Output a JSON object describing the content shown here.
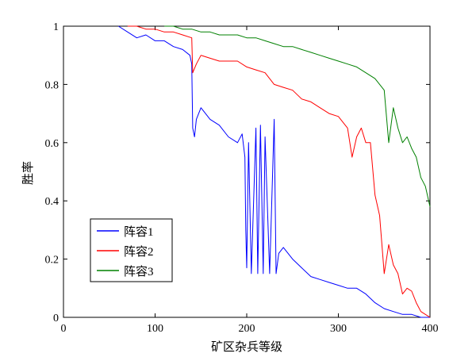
{
  "chart_data": {
    "type": "line",
    "title": "",
    "xlabel": "矿区杂兵等级",
    "ylabel": "胜率",
    "xlim": [
      0,
      400
    ],
    "ylim": [
      0,
      1
    ],
    "xticks": [
      0,
      100,
      200,
      300,
      400
    ],
    "yticks": [
      0,
      0.2,
      0.4,
      0.6,
      0.8,
      1
    ],
    "xtick_labels": [
      "0",
      "100",
      "200",
      "300",
      "400"
    ],
    "ytick_labels": [
      "0",
      "0.2",
      "0.4",
      "0.6",
      "0.8",
      "1"
    ],
    "grid": false,
    "legend_position": "lower-left",
    "series": [
      {
        "name": "阵容1",
        "color": "#0000ff",
        "x": [
          60,
          70,
          80,
          90,
          100,
          110,
          120,
          130,
          138,
          140,
          141,
          143,
          145,
          150,
          160,
          170,
          180,
          190,
          195,
          198,
          199,
          200,
          202,
          205,
          210,
          212,
          215,
          218,
          220,
          225,
          230,
          232,
          235,
          240,
          250,
          260,
          270,
          280,
          290,
          300,
          310,
          320,
          330,
          340,
          350,
          360,
          370,
          380,
          390,
          400
        ],
        "y": [
          1.0,
          0.98,
          0.96,
          0.97,
          0.95,
          0.95,
          0.93,
          0.92,
          0.9,
          0.87,
          0.65,
          0.62,
          0.68,
          0.72,
          0.68,
          0.66,
          0.62,
          0.6,
          0.63,
          0.55,
          0.3,
          0.17,
          0.6,
          0.15,
          0.65,
          0.15,
          0.66,
          0.15,
          0.62,
          0.15,
          0.68,
          0.15,
          0.22,
          0.24,
          0.2,
          0.17,
          0.14,
          0.13,
          0.12,
          0.11,
          0.1,
          0.1,
          0.08,
          0.05,
          0.03,
          0.02,
          0.01,
          0.01,
          0.0,
          0.0
        ]
      },
      {
        "name": "阵容2",
        "color": "#ff0000",
        "x": [
          70,
          80,
          90,
          100,
          110,
          120,
          130,
          140,
          141,
          145,
          150,
          160,
          170,
          180,
          190,
          200,
          210,
          220,
          230,
          240,
          250,
          260,
          270,
          280,
          290,
          300,
          310,
          315,
          320,
          325,
          330,
          335,
          340,
          345,
          350,
          355,
          360,
          365,
          370,
          375,
          380,
          385,
          390,
          395,
          400
        ],
        "y": [
          1.0,
          1.0,
          0.99,
          0.99,
          0.98,
          0.98,
          0.97,
          0.96,
          0.84,
          0.87,
          0.9,
          0.89,
          0.88,
          0.88,
          0.88,
          0.86,
          0.85,
          0.84,
          0.8,
          0.79,
          0.78,
          0.75,
          0.74,
          0.72,
          0.7,
          0.69,
          0.65,
          0.55,
          0.62,
          0.65,
          0.6,
          0.6,
          0.42,
          0.35,
          0.15,
          0.25,
          0.18,
          0.15,
          0.08,
          0.1,
          0.09,
          0.05,
          0.02,
          0.01,
          0.0
        ]
      },
      {
        "name": "阵容3",
        "color": "#008000",
        "x": [
          110,
          120,
          130,
          140,
          150,
          160,
          170,
          180,
          190,
          200,
          210,
          220,
          230,
          240,
          250,
          260,
          270,
          280,
          290,
          300,
          310,
          320,
          330,
          340,
          350,
          355,
          360,
          365,
          370,
          375,
          380,
          385,
          390,
          395,
          400
        ],
        "y": [
          1.0,
          1.0,
          0.99,
          0.99,
          0.98,
          0.98,
          0.97,
          0.97,
          0.97,
          0.96,
          0.96,
          0.95,
          0.94,
          0.93,
          0.93,
          0.92,
          0.91,
          0.9,
          0.89,
          0.88,
          0.87,
          0.86,
          0.84,
          0.82,
          0.78,
          0.6,
          0.72,
          0.65,
          0.6,
          0.62,
          0.58,
          0.55,
          0.48,
          0.45,
          0.38
        ]
      }
    ]
  }
}
